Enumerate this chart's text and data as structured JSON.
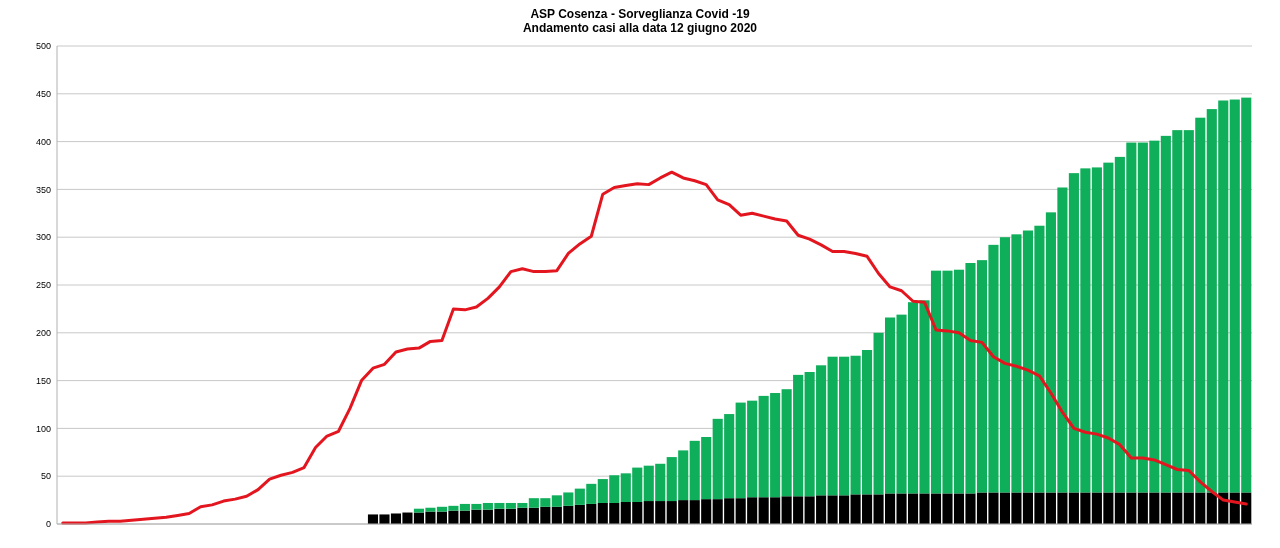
{
  "chart_data": {
    "type": "bar",
    "title": "ASP Cosenza - Sorveglianza Covid -19",
    "subtitle": "Andamento casi alla data 12 giugno  2020",
    "stacked": true,
    "grid": "y",
    "ylim": [
      0,
      500
    ],
    "yticks": [
      0,
      50,
      100,
      150,
      200,
      250,
      300,
      350,
      400,
      450,
      500
    ],
    "categories": [
      null,
      null,
      null,
      null,
      null,
      null,
      null,
      null,
      null,
      null,
      null,
      null,
      null,
      null,
      null,
      null,
      null,
      null,
      null,
      null,
      null,
      null,
      null,
      null,
      null,
      null,
      null,
      null,
      null,
      null,
      null,
      null,
      null,
      null,
      null,
      null,
      null,
      null,
      null,
      null,
      null,
      null,
      null,
      null,
      null,
      null,
      null,
      null,
      null,
      null,
      null,
      null,
      null,
      null,
      null,
      null,
      null,
      null,
      null,
      null,
      null,
      null,
      null,
      null,
      null,
      null,
      null,
      null,
      null,
      null,
      null,
      null,
      null,
      null,
      null,
      null,
      null,
      null,
      null,
      null,
      null,
      null,
      null,
      null,
      null,
      null,
      null,
      null,
      null,
      null,
      null,
      null,
      null,
      null,
      null,
      null,
      null,
      null,
      null,
      null,
      null,
      null,
      null,
      null
    ],
    "series": [
      {
        "color": "#000000",
        "values": [
          null,
          null,
          null,
          null,
          null,
          null,
          null,
          null,
          null,
          null,
          null,
          null,
          null,
          null,
          null,
          null,
          null,
          null,
          null,
          null,
          null,
          null,
          null,
          null,
          null,
          null,
          null,
          10,
          10,
          11,
          12,
          12,
          13,
          13,
          14,
          14,
          15,
          15,
          16,
          16,
          17,
          17,
          18,
          18,
          19,
          20,
          21,
          22,
          22,
          23,
          23,
          24,
          24,
          24,
          25,
          25,
          26,
          26,
          27,
          27,
          28,
          28,
          28,
          29,
          29,
          29,
          30,
          30,
          30,
          31,
          31,
          31,
          32,
          32,
          32,
          32,
          32,
          32,
          32,
          32,
          33,
          33,
          33,
          33,
          33,
          33,
          33,
          33,
          33,
          33,
          33,
          33,
          33,
          33,
          33,
          33,
          33,
          33,
          33,
          33,
          33,
          33,
          33,
          33
        ]
      },
      {
        "color": "#0fae5a",
        "values": [
          null,
          null,
          null,
          null,
          null,
          null,
          null,
          null,
          null,
          null,
          null,
          null,
          null,
          null,
          null,
          null,
          null,
          null,
          null,
          null,
          null,
          null,
          null,
          null,
          null,
          null,
          null,
          null,
          null,
          null,
          null,
          4,
          4,
          5,
          5,
          7,
          6,
          7,
          6,
          6,
          5,
          10,
          9,
          12,
          14,
          17,
          21,
          25,
          29,
          30,
          36,
          37,
          39,
          46,
          52,
          62,
          65,
          84,
          88,
          100,
          101,
          106,
          109,
          112,
          127,
          130,
          136,
          145,
          145,
          145,
          151,
          169,
          184,
          187,
          200,
          202,
          233,
          233,
          234,
          241,
          243,
          259,
          267,
          270,
          274,
          279,
          293,
          319,
          334,
          339,
          340,
          345,
          351,
          366,
          366,
          368,
          373,
          379,
          379,
          392,
          401,
          410,
          411,
          413
        ]
      },
      {
        "type": "line",
        "color": "#e3161f",
        "values": [
          1,
          1,
          1,
          2,
          3,
          3,
          4,
          5,
          6,
          7,
          9,
          11,
          18,
          20,
          24,
          26,
          29,
          36,
          47,
          51,
          54,
          59,
          80,
          92,
          97,
          121,
          150,
          163,
          167,
          180,
          183,
          184,
          191,
          192,
          225,
          224,
          227,
          236,
          248,
          264,
          267,
          264,
          264,
          265,
          283,
          293,
          301,
          345,
          352,
          354,
          356,
          355,
          362,
          368,
          362,
          359,
          355,
          339,
          334,
          323,
          325,
          322,
          319,
          317,
          302,
          298,
          292,
          285,
          285,
          283,
          280,
          262,
          248,
          244,
          233,
          232,
          203,
          202,
          200,
          192,
          190,
          175,
          168,
          165,
          161,
          155,
          137,
          117,
          100,
          96,
          94,
          90,
          83,
          69,
          69,
          67,
          62,
          57,
          56,
          44,
          34,
          25,
          23,
          21
        ]
      }
    ]
  }
}
